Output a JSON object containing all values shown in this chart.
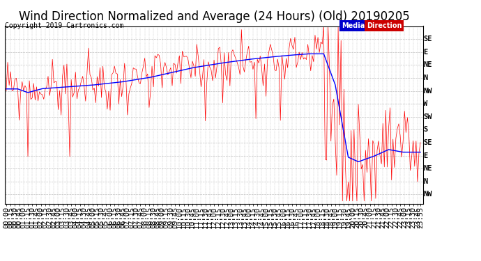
{
  "title": "Wind Direction Normalized and Average (24 Hours) (Old) 20190205",
  "copyright": "Copyright 2019 Cartronics.com",
  "background_color": "#ffffff",
  "grid_color": "#c0c0c0",
  "ytick_labels_right": [
    "SE",
    "E",
    "NE",
    "N",
    "NW",
    "W",
    "SW",
    "S",
    "SE",
    "E",
    "NE",
    "N",
    "NW"
  ],
  "ytick_values": [
    13,
    12,
    11,
    10,
    9,
    8,
    7,
    6,
    5,
    4,
    3,
    2,
    1
  ],
  "red_line_color": "#ff0000",
  "blue_line_color": "#0000ff",
  "median_legend_bg": "#0000cc",
  "direction_legend_bg": "#cc0000",
  "title_fontsize": 12,
  "copyright_fontsize": 7,
  "tick_fontsize": 7.5,
  "legend_fontsize": 7
}
